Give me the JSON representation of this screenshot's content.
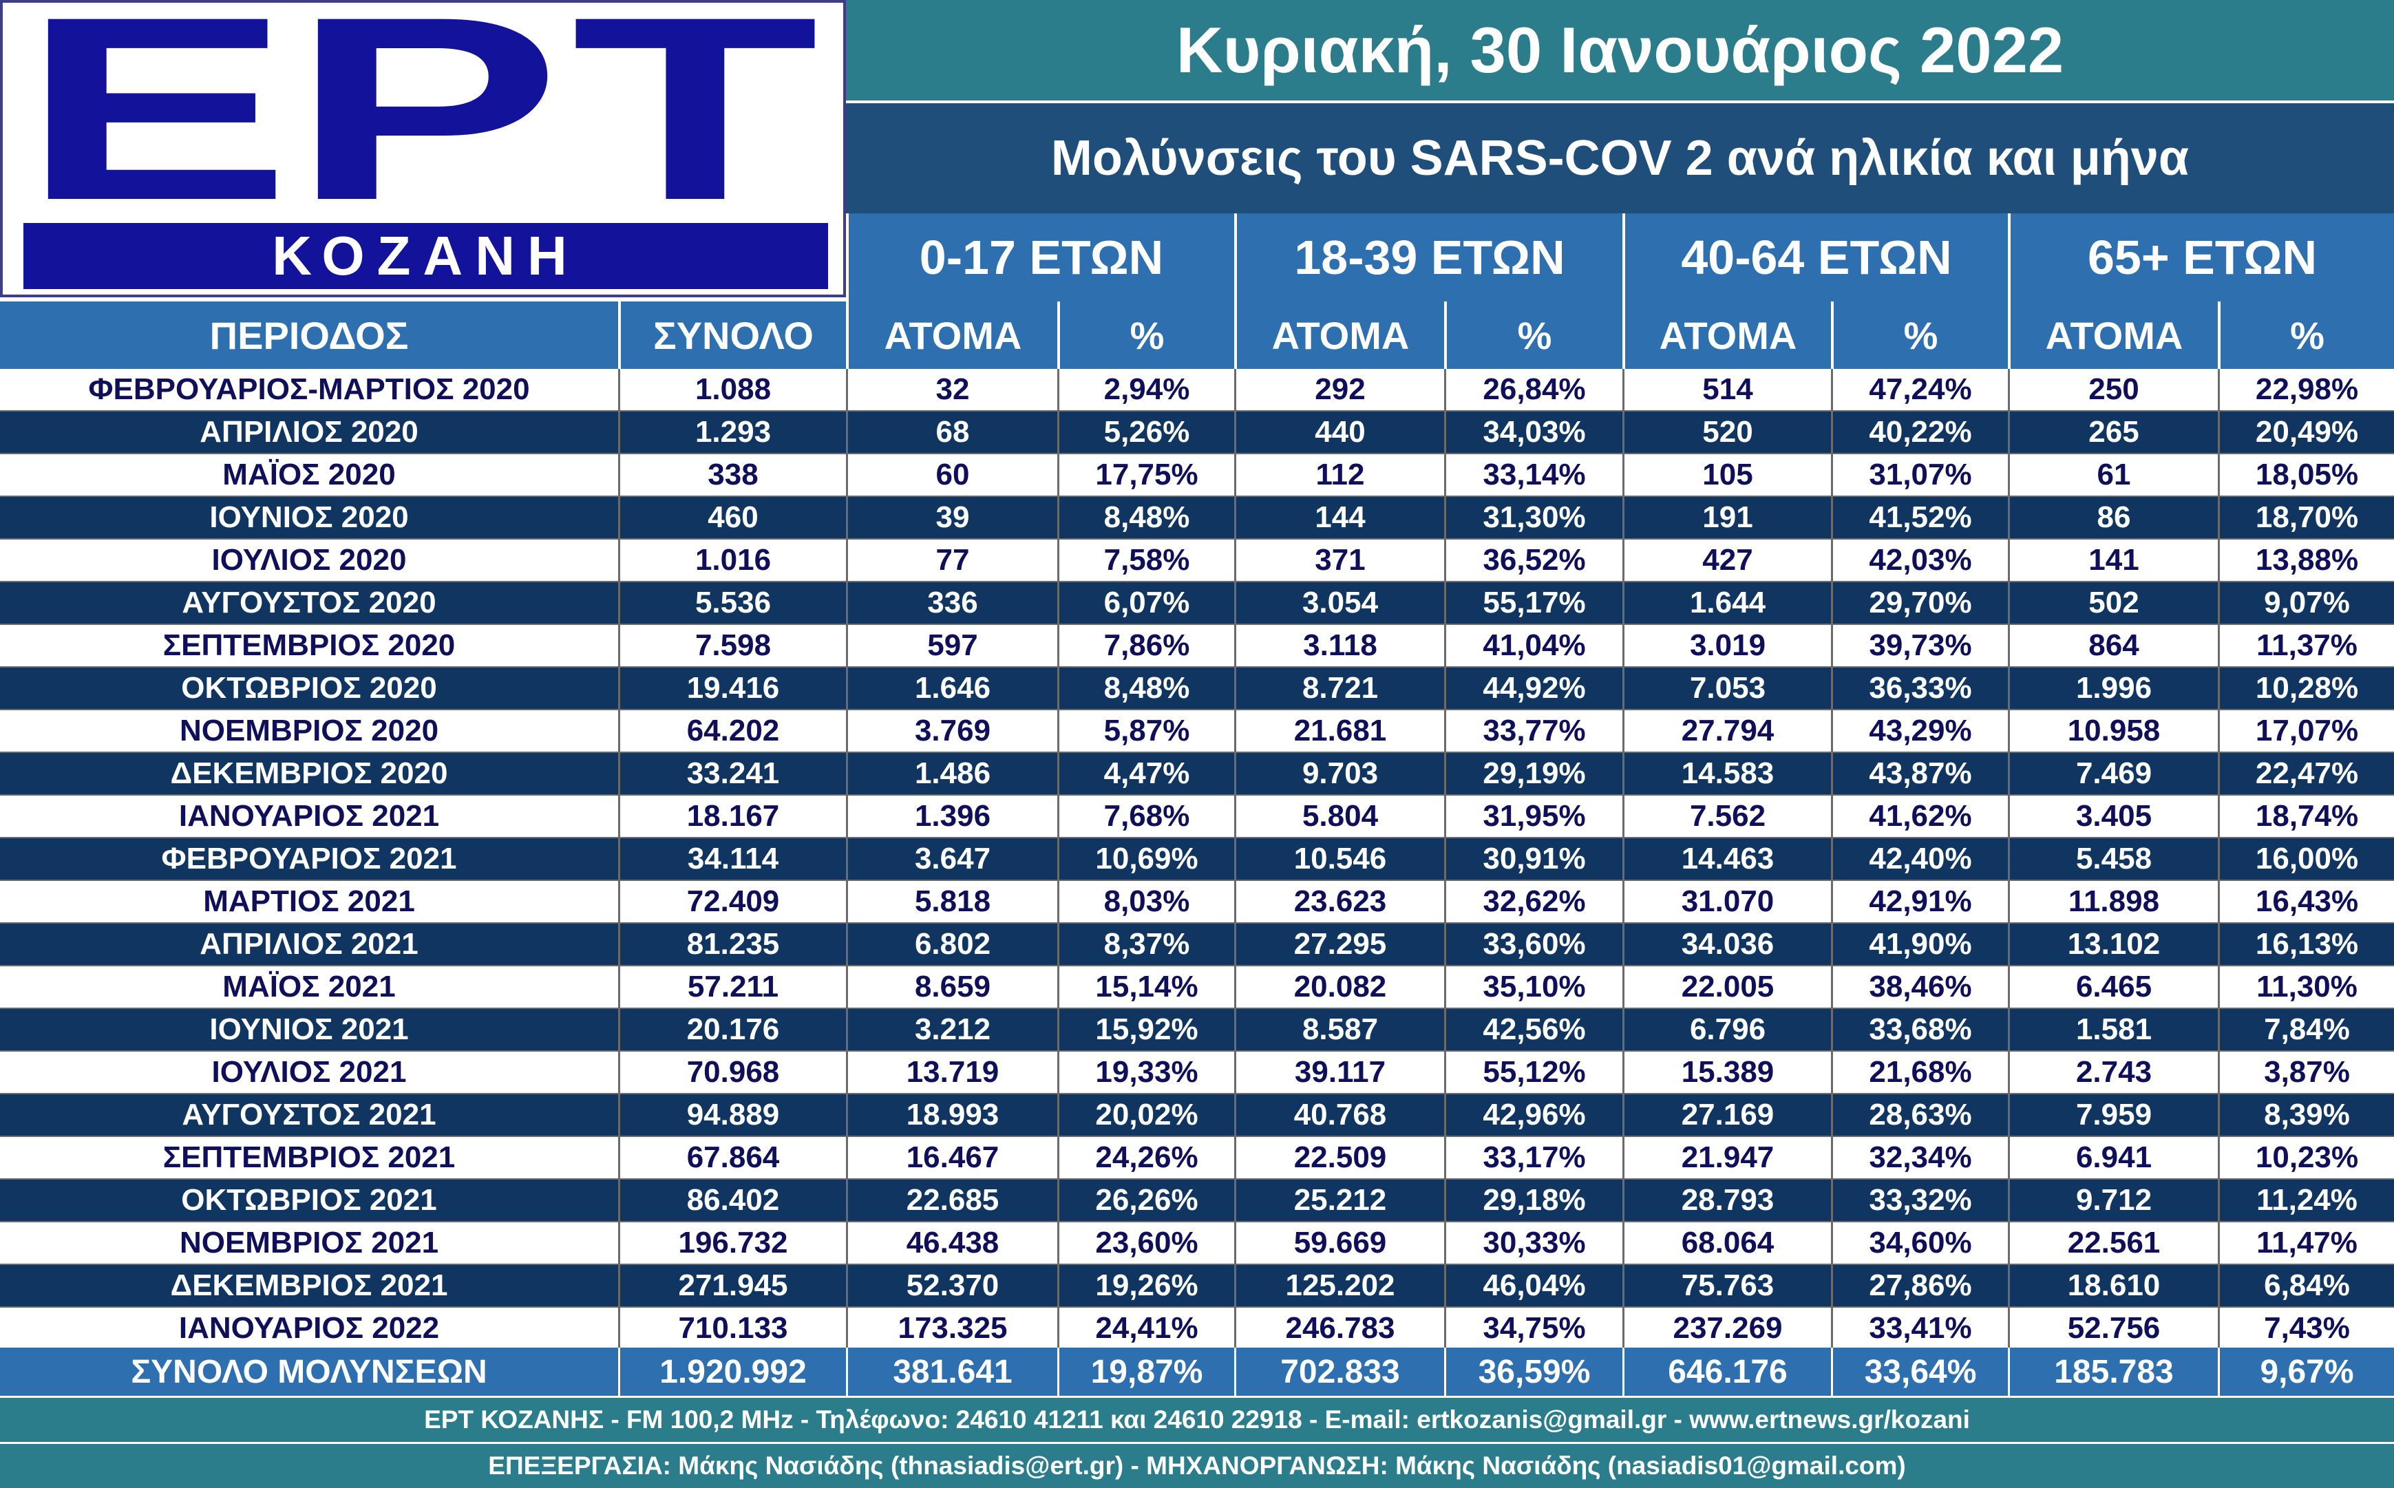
{
  "logo": {
    "letters": [
      "Ε",
      "Ρ",
      "Τ"
    ],
    "city": "ΚΟΖΑΝΗ"
  },
  "date": "Κυριακή, 30 Ιανουάριος 2022",
  "subtitle": "Μολύνσεις του SARS-COV 2 ανά ηλικία και μήνα",
  "age_groups": [
    "0-17 ΕΤΩΝ",
    "18-39 ΕΤΩΝ",
    "40-64 ΕΤΩΝ",
    "65+  ΕΤΩΝ"
  ],
  "columns": [
    "ΠΕΡΙΟΔΟΣ",
    "ΣΥΝΟΛΟ",
    "ΑΤΟΜΑ",
    "%",
    "ΑΤΟΜΑ",
    "%",
    "ΑΤΟΜΑ",
    "%",
    "ΑΤΟΜΑ",
    "%"
  ],
  "rows": [
    [
      "ΦΕΒΡΟΥΑΡΙΟΣ-ΜΑΡΤΙΟΣ 2020",
      "1.088",
      "32",
      "2,94%",
      "292",
      "26,84%",
      "514",
      "47,24%",
      "250",
      "22,98%"
    ],
    [
      "ΑΠΡΙΛΙΟΣ 2020",
      "1.293",
      "68",
      "5,26%",
      "440",
      "34,03%",
      "520",
      "40,22%",
      "265",
      "20,49%"
    ],
    [
      "ΜΑΪΟΣ 2020",
      "338",
      "60",
      "17,75%",
      "112",
      "33,14%",
      "105",
      "31,07%",
      "61",
      "18,05%"
    ],
    [
      "ΙΟΥΝΙΟΣ 2020",
      "460",
      "39",
      "8,48%",
      "144",
      "31,30%",
      "191",
      "41,52%",
      "86",
      "18,70%"
    ],
    [
      "ΙΟΥΛΙΟΣ 2020",
      "1.016",
      "77",
      "7,58%",
      "371",
      "36,52%",
      "427",
      "42,03%",
      "141",
      "13,88%"
    ],
    [
      "ΑΥΓΟΥΣΤΟΣ 2020",
      "5.536",
      "336",
      "6,07%",
      "3.054",
      "55,17%",
      "1.644",
      "29,70%",
      "502",
      "9,07%"
    ],
    [
      "ΣΕΠΤΕΜΒΡΙΟΣ 2020",
      "7.598",
      "597",
      "7,86%",
      "3.118",
      "41,04%",
      "3.019",
      "39,73%",
      "864",
      "11,37%"
    ],
    [
      "ΟΚΤΩΒΡΙΟΣ 2020",
      "19.416",
      "1.646",
      "8,48%",
      "8.721",
      "44,92%",
      "7.053",
      "36,33%",
      "1.996",
      "10,28%"
    ],
    [
      "ΝΟΕΜΒΡΙΟΣ 2020",
      "64.202",
      "3.769",
      "5,87%",
      "21.681",
      "33,77%",
      "27.794",
      "43,29%",
      "10.958",
      "17,07%"
    ],
    [
      "ΔΕΚΕΜΒΡΙΟΣ 2020",
      "33.241",
      "1.486",
      "4,47%",
      "9.703",
      "29,19%",
      "14.583",
      "43,87%",
      "7.469",
      "22,47%"
    ],
    [
      "ΙΑΝΟΥΑΡΙΟΣ 2021",
      "18.167",
      "1.396",
      "7,68%",
      "5.804",
      "31,95%",
      "7.562",
      "41,62%",
      "3.405",
      "18,74%"
    ],
    [
      "ΦΕΒΡΟΥΑΡΙΟΣ 2021",
      "34.114",
      "3.647",
      "10,69%",
      "10.546",
      "30,91%",
      "14.463",
      "42,40%",
      "5.458",
      "16,00%"
    ],
    [
      "ΜΑΡΤΙΟΣ 2021",
      "72.409",
      "5.818",
      "8,03%",
      "23.623",
      "32,62%",
      "31.070",
      "42,91%",
      "11.898",
      "16,43%"
    ],
    [
      "ΑΠΡΙΛΙΟΣ 2021",
      "81.235",
      "6.802",
      "8,37%",
      "27.295",
      "33,60%",
      "34.036",
      "41,90%",
      "13.102",
      "16,13%"
    ],
    [
      "ΜΑΪΟΣ 2021",
      "57.211",
      "8.659",
      "15,14%",
      "20.082",
      "35,10%",
      "22.005",
      "38,46%",
      "6.465",
      "11,30%"
    ],
    [
      "ΙΟΥΝΙΟΣ 2021",
      "20.176",
      "3.212",
      "15,92%",
      "8.587",
      "42,56%",
      "6.796",
      "33,68%",
      "1.581",
      "7,84%"
    ],
    [
      "ΙΟΥΛΙΟΣ 2021",
      "70.968",
      "13.719",
      "19,33%",
      "39.117",
      "55,12%",
      "15.389",
      "21,68%",
      "2.743",
      "3,87%"
    ],
    [
      "ΑΥΓΟΥΣΤΟΣ 2021",
      "94.889",
      "18.993",
      "20,02%",
      "40.768",
      "42,96%",
      "27.169",
      "28,63%",
      "7.959",
      "8,39%"
    ],
    [
      "ΣΕΠΤΕΜΒΡΙΟΣ 2021",
      "67.864",
      "16.467",
      "24,26%",
      "22.509",
      "33,17%",
      "21.947",
      "32,34%",
      "6.941",
      "10,23%"
    ],
    [
      "ΟΚΤΩΒΡΙΟΣ 2021",
      "86.402",
      "22.685",
      "26,26%",
      "25.212",
      "29,18%",
      "28.793",
      "33,32%",
      "9.712",
      "11,24%"
    ],
    [
      "ΝΟΕΜΒΡΙΟΣ 2021",
      "196.732",
      "46.438",
      "23,60%",
      "59.669",
      "30,33%",
      "68.064",
      "34,60%",
      "22.561",
      "11,47%"
    ],
    [
      "ΔΕΚΕΜΒΡΙΟΣ 2021",
      "271.945",
      "52.370",
      "19,26%",
      "125.202",
      "46,04%",
      "75.763",
      "27,86%",
      "18.610",
      "6,84%"
    ],
    [
      "ΙΑΝΟΥΑΡΙΟΣ 2022",
      "710.133",
      "173.325",
      "24,41%",
      "246.783",
      "34,75%",
      "237.269",
      "33,41%",
      "52.756",
      "7,43%"
    ]
  ],
  "total": [
    "ΣΥΝΟΛΟ ΜΟΛΥΝΣΕΩΝ",
    "1.920.992",
    "381.641",
    "19,87%",
    "702.833",
    "36,59%",
    "646.176",
    "33,64%",
    "185.783",
    "9,67%"
  ],
  "footer": {
    "line1": "ΕΡΤ ΚΟΖΑΝΗΣ - FM 100,2 MHz - Τηλέφωνο:  24610 41211 και 24610 22918 - E-mail: ertkozanis@gmail.gr - www.ertnews.gr/kozani",
    "line2": "ΕΠΕΞΕΡΓΑΣΙΑ: Μάκης Νασιάδης (thnasiadis@ert.gr) - ΜΗΧΑΝΟΡΓΑΝΩΣΗ: Μάκης Νασιάδης (nasiadis01@gmail.com)"
  },
  "colors": {
    "teal": "#2b7d8c",
    "header_blue": "#2e6fb0",
    "dark_row": "#0f3560",
    "subtitle_bg": "#1f4e7a",
    "logo_blue": "#12129a"
  }
}
